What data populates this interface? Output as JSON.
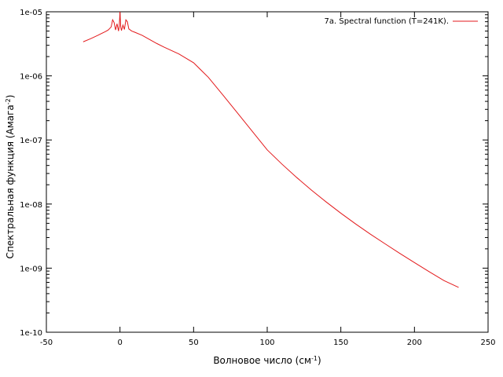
{
  "chart_data": {
    "type": "line",
    "title": "",
    "xlabel": "Волновое число (см",
    "xlabel_sup": "-1",
    "xlabel_tail": ")",
    "ylabel": "Спектральная функция (Амага",
    "ylabel_sup": "-2",
    "ylabel_tail": ")",
    "xlim": [
      -50,
      250
    ],
    "ylim": [
      1e-10,
      1e-05
    ],
    "y_scale": "log",
    "grid": false,
    "legend_position": "top-right",
    "x_ticks": [
      -50,
      0,
      50,
      100,
      150,
      200,
      250
    ],
    "x_tick_labels": [
      "-50",
      "0",
      "50",
      "100",
      "150",
      "200",
      "250"
    ],
    "y_ticks": [
      1e-10,
      1e-09,
      1e-08,
      1e-07,
      1e-06,
      1e-05
    ],
    "y_tick_labels": [
      "1e-10",
      "1e-09",
      "1e-08",
      "1e-07",
      "1e-06",
      "1e-05"
    ],
    "series": [
      {
        "name": "7a. Spectral function (T=241K).",
        "color": "#e31a1c",
        "x": [
          -25,
          -20,
          -15,
          -10,
          -8,
          -6,
          -5,
          -4,
          -3,
          -2,
          -1,
          -0.5,
          0,
          0.5,
          1,
          2,
          3,
          4,
          5,
          6,
          8,
          10,
          15,
          20,
          25,
          30,
          40,
          50,
          60,
          70,
          80,
          90,
          100,
          110,
          120,
          130,
          140,
          150,
          160,
          170,
          180,
          190,
          200,
          210,
          220,
          230
        ],
        "y": [
          3.4e-06,
          3.8e-06,
          4.3e-06,
          4.9e-06,
          5.2e-06,
          5.8e-06,
          7.5e-06,
          6.8e-06,
          5.2e-06,
          6.5e-06,
          5e-06,
          6e-06,
          1e-05,
          5.8e-06,
          5.1e-06,
          6.2e-06,
          5.3e-06,
          7.5e-06,
          7e-06,
          5.4e-06,
          5e-06,
          4.8e-06,
          4.3e-06,
          3.7e-06,
          3.2e-06,
          2.8e-06,
          2.2e-06,
          1.6e-06,
          9.5e-07,
          5e-07,
          2.6e-07,
          1.35e-07,
          7e-08,
          4.2e-08,
          2.6e-08,
          1.65e-08,
          1.08e-08,
          7.2e-09,
          4.9e-09,
          3.4e-09,
          2.4e-09,
          1.7e-09,
          1.22e-09,
          8.8e-10,
          6.4e-10,
          5e-10
        ]
      }
    ]
  }
}
